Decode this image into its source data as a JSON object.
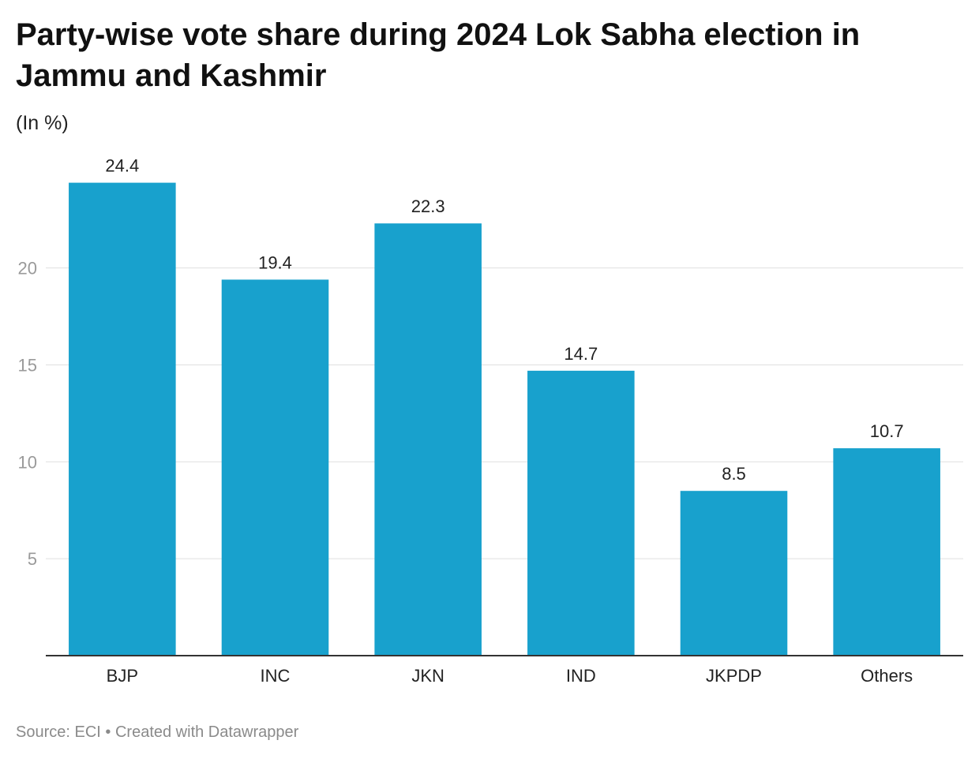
{
  "header": {
    "title": "Party-wise vote share during 2024 Lok Sabha election in Jammu and Kashmir",
    "subtitle": "(In %)"
  },
  "footer": {
    "source_label": "Source: ECI",
    "separator": "•",
    "credit": "Created with Datawrapper"
  },
  "chart_data": {
    "type": "bar",
    "title": "Party-wise vote share during 2024 Lok Sabha election in Jammu and Kashmir",
    "subtitle": "(In %)",
    "xlabel": "",
    "ylabel": "",
    "categories": [
      "BJP",
      "INC",
      "JKN",
      "IND",
      "JKPDP",
      "Others"
    ],
    "values": [
      24.4,
      19.4,
      22.3,
      14.7,
      8.5,
      10.7
    ],
    "value_labels": [
      "24.4",
      "19.4",
      "22.3",
      "14.7",
      "8.5",
      "10.7"
    ],
    "ylim": [
      0,
      26.5
    ],
    "yticks": [
      5,
      10,
      15,
      20
    ],
    "grid": true,
    "bar_color": "#18a1cd",
    "grid_color": "#e0e0e0",
    "baseline_color": "#333333",
    "tick_label_color": "#9a9a9a"
  }
}
